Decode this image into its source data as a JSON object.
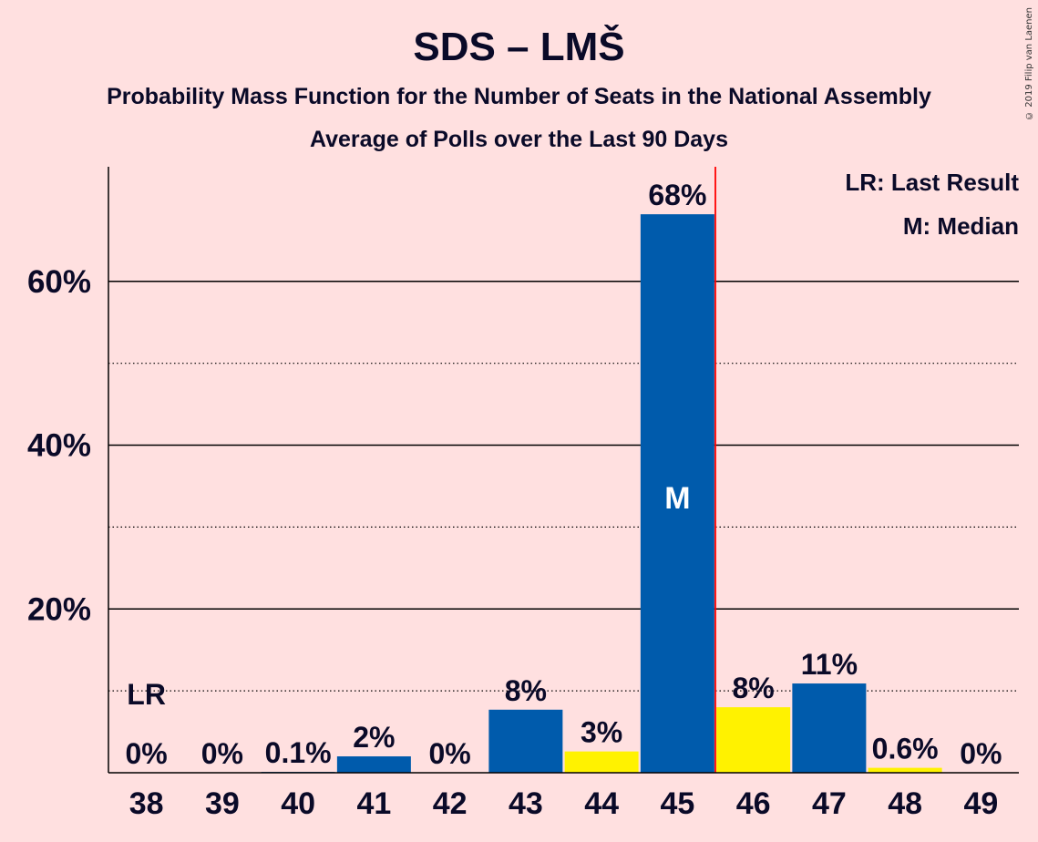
{
  "copyright": "© 2019 Filip van Laenen",
  "chart_data": {
    "type": "bar",
    "title": "SDS – LMŠ",
    "subtitle": "Probability Mass Function for the Number of Seats in the National Assembly",
    "subtitle2": "Average of Polls over the Last 90 Days",
    "categories": [
      "38",
      "39",
      "40",
      "41",
      "42",
      "43",
      "44",
      "45",
      "46",
      "47",
      "48",
      "49"
    ],
    "values": [
      0,
      0,
      0.1,
      2,
      0,
      7.7,
      2.6,
      68.2,
      8,
      10.9,
      0.6,
      0
    ],
    "value_labels": [
      "0%",
      "0%",
      "0.1%",
      "2%",
      "0%",
      "8%",
      "3%",
      "68%",
      "8%",
      "11%",
      "0.6%",
      "0%"
    ],
    "bar_colors": [
      "#005BAC",
      "#FFF200",
      "#005BAC",
      "#005BAC",
      "#FFF200",
      "#005BAC",
      "#FFF200",
      "#005BAC",
      "#FFF200",
      "#005BAC",
      "#FFF200",
      "#005BAC"
    ],
    "ylim": [
      0,
      74
    ],
    "yticks": [
      20,
      40,
      60
    ],
    "ytick_labels": [
      "20%",
      "40%",
      "60%"
    ],
    "minor_gridlines": [
      10,
      30,
      50
    ],
    "last_result_category": "38",
    "last_result_label": "LR",
    "median_category": "45",
    "median_label": "M",
    "majority_line_after": "45",
    "majority_line_color": "#FF0000",
    "legend": [
      "LR: Last Result",
      "M: Median"
    ],
    "legend_position": "top-right",
    "background": "#FFE0E0"
  }
}
